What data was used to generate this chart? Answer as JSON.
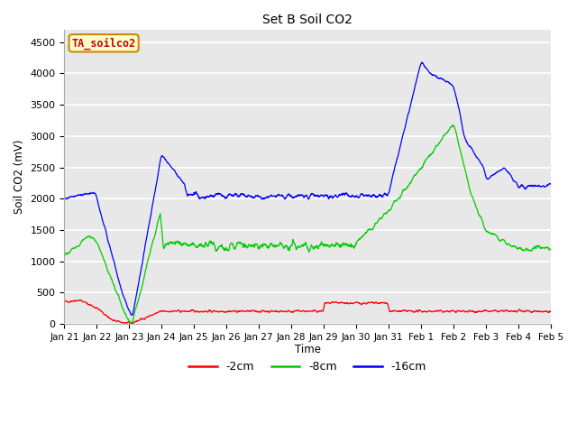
{
  "title": "Set B Soil CO2",
  "ylabel": "Soil CO2 (mV)",
  "xlabel": "Time",
  "annotation": "TA_soilco2",
  "ylim": [
    0,
    4700
  ],
  "yticks": [
    0,
    500,
    1000,
    1500,
    2000,
    2500,
    3000,
    3500,
    4000,
    4500
  ],
  "legend_labels": [
    "-2cm",
    "-8cm",
    "-16cm"
  ],
  "legend_colors": [
    "#ff0000",
    "#00cc00",
    "#0000ff"
  ],
  "fig_bg_color": "#ffffff",
  "plot_bg_color": "#e8e8e8",
  "line_colors": [
    "#ff0000",
    "#00cc00",
    "#0000ff"
  ],
  "xtick_labels": [
    "Jan 21",
    "Jan 22",
    "Jan 23",
    "Jan 24",
    "Jan 25",
    "Jan 26",
    "Jan 27",
    "Jan 28",
    "Jan 29",
    "Jan 30",
    "Jan 31",
    "Feb 1",
    "Feb 2",
    "Feb 3",
    "Feb 4",
    "Feb 5"
  ]
}
